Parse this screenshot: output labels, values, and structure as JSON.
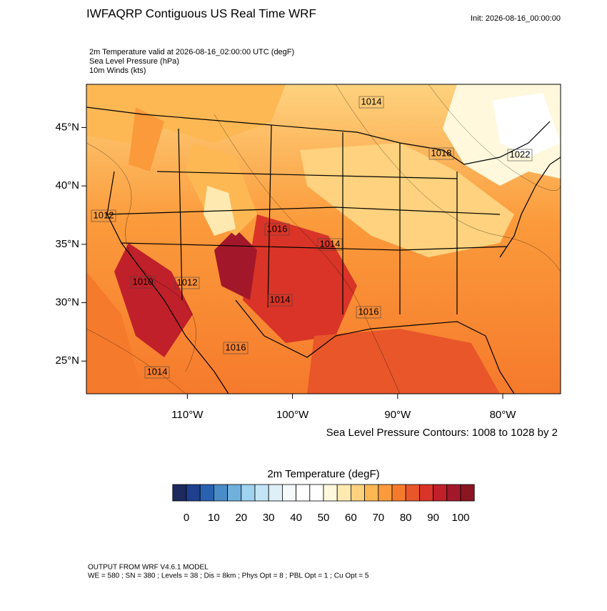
{
  "header": {
    "title": "IWFAQRP Contiguous US Real Time WRF",
    "init": "Init: 2026-08-16_00:00:00",
    "subtitles": [
      "2m Temperature valid at 2026-08-16_02:00:00 UTC   (degF)",
      "Sea Level Pressure   (hPa)",
      "10m Winds   (kts)"
    ]
  },
  "map": {
    "xlim": [
      -119.6,
      -74.5
    ],
    "ylim": [
      22.2,
      48.7
    ],
    "yticks": [
      {
        "value": 45,
        "label": "45°N"
      },
      {
        "value": 40,
        "label": "40°N"
      },
      {
        "value": 35,
        "label": "35°N"
      },
      {
        "value": 30,
        "label": "30°N"
      },
      {
        "value": 25,
        "label": "25°N"
      }
    ],
    "xticks": [
      {
        "value": -110,
        "label": "110°W"
      },
      {
        "value": -100,
        "label": "100°W"
      },
      {
        "value": -90,
        "label": "90°W"
      },
      {
        "value": -80,
        "label": "80°W"
      }
    ],
    "contour_labels": [
      "1014",
      "1012",
      "1014",
      "1014",
      "1016",
      "1016",
      "1014",
      "1018",
      "1022",
      "1010",
      "1016",
      "1012"
    ],
    "contour_note": "Sea Level Pressure Contours: 1008 to 1028 by 2"
  },
  "colorbar": {
    "title": "2m Temperature  (degF)",
    "levels": [
      0,
      5,
      10,
      15,
      20,
      25,
      30,
      35,
      40,
      45,
      50,
      55,
      60,
      65,
      70,
      75,
      80,
      85,
      90,
      95,
      100
    ],
    "colors": [
      "#1c2a5e",
      "#1f3f8f",
      "#2a62b2",
      "#4a8cc7",
      "#6fb0dc",
      "#9fd3ef",
      "#c3e4f4",
      "#dfeff8",
      "#f4f9fc",
      "#ffffff",
      "#ffffff",
      "#fff8dc",
      "#feeab0",
      "#fed27e",
      "#fdb854",
      "#fb9a3b",
      "#f67a2c",
      "#e8562a",
      "#d93427",
      "#c0202a",
      "#a2182a",
      "#8a1622"
    ],
    "ticks": [
      0,
      10,
      20,
      30,
      40,
      50,
      60,
      70,
      80,
      90,
      100
    ]
  },
  "footer": [
    "OUTPUT FROM WRF V4.6.1 MODEL",
    "WE = 580 ; SN = 380 ; Levels = 38 ; Dis = 8km ; Phys Opt = 8 ; PBL Opt = 1 ; Cu Opt = 5"
  ]
}
